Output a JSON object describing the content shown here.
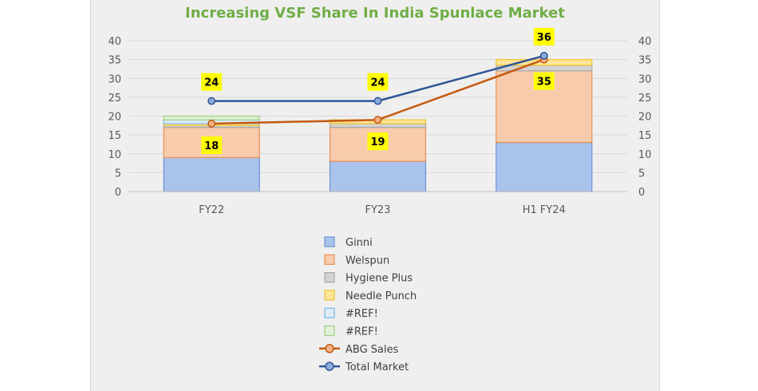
{
  "chart_data": {
    "type": "bar",
    "title": "Increasing VSF Share In India Spunlace Market",
    "categories": [
      "FY22",
      "FY23",
      "H1 FY24"
    ],
    "ylim": [
      0,
      40
    ],
    "y_ticks": [
      0,
      5,
      10,
      15,
      20,
      25,
      30,
      35,
      40
    ],
    "secondary_ylim": [
      0,
      40
    ],
    "grid": true,
    "legend_position": "bottom",
    "stacked_series": [
      {
        "name": "Ginni",
        "values": [
          9,
          8,
          13
        ],
        "color": "#a9c3ea",
        "stroke": "#6b93d6"
      },
      {
        "name": "Welspun",
        "values": [
          8,
          9,
          19
        ],
        "color": "#f8cbad",
        "stroke": "#ed8e53"
      },
      {
        "name": "Hygiene Plus",
        "values": [
          0.5,
          1,
          1.5
        ],
        "color": "#d2d2d2",
        "stroke": "#a8a8a8"
      },
      {
        "name": "Needle Punch",
        "values": [
          0.5,
          1,
          1.5
        ],
        "color": "#ffe699",
        "stroke": "#f0c230"
      },
      {
        "name": "#REF!",
        "values": [
          1,
          0,
          0
        ],
        "color": "#ddebf7",
        "stroke": "#7ab8e6"
      },
      {
        "name": "#REF!",
        "values": [
          1,
          0,
          0
        ],
        "color": "#e2efd9",
        "stroke": "#9cd27f"
      }
    ],
    "line_series": [
      {
        "name": "ABG Sales",
        "values": [
          18,
          19,
          35
        ],
        "color": "#c55a11",
        "marker_fill": "#f4b183"
      },
      {
        "name": "Total Market",
        "values": [
          24,
          24,
          36
        ],
        "color": "#2f5597",
        "marker_fill": "#8faadc"
      }
    ],
    "data_labels": {
      "ABG Sales": [
        "18",
        "19",
        "35"
      ],
      "Total Market": [
        "24",
        "24",
        "36"
      ]
    },
    "colors": {
      "title": "#70ad47",
      "label_bg": "#ffff00",
      "gridline": "#d9d9d9",
      "axis_text": "#595959"
    }
  }
}
